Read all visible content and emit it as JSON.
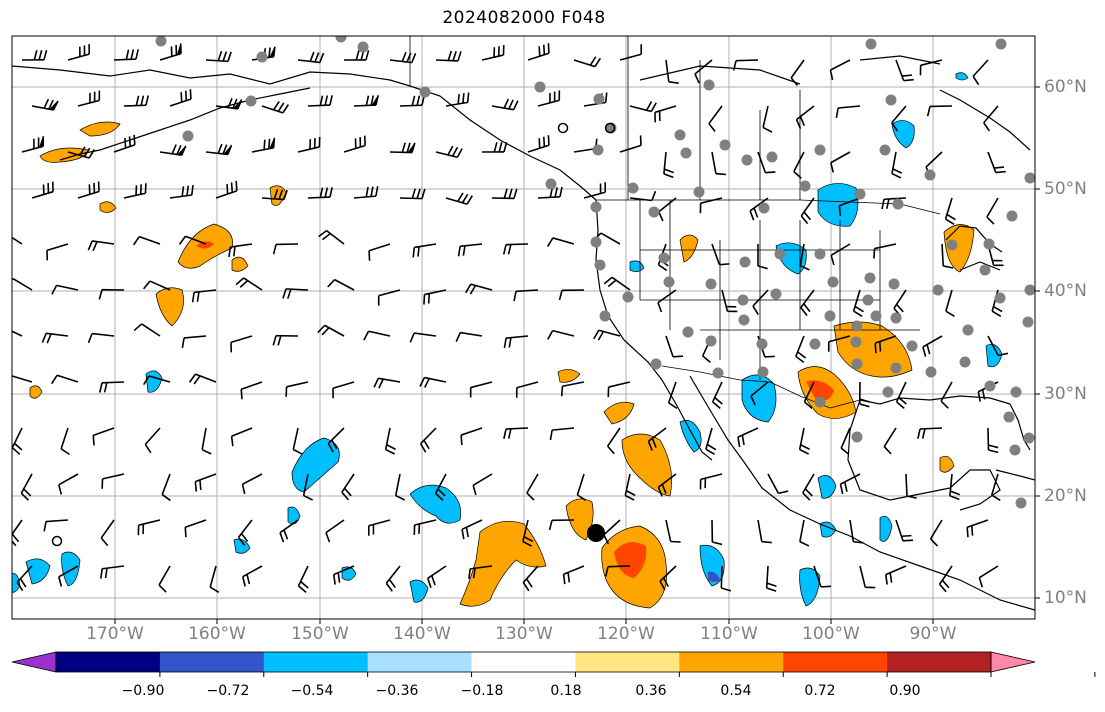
{
  "title": "2024082000 F048",
  "longitude_labels": [
    "170°W",
    "160°W",
    "150°W",
    "140°W",
    "130°W",
    "120°W",
    "110°W",
    "100°W",
    "90°W"
  ],
  "latitude_labels": [
    "60°N",
    "50°N",
    "40°N",
    "30°N",
    "20°N",
    "10°N"
  ],
  "colorbar": {
    "tick_labels": [
      "−0.90",
      "−0.72",
      "−0.54",
      "−0.36",
      "−0.18",
      "0.18",
      "0.36",
      "0.54",
      "0.72",
      "0.90"
    ],
    "colors": [
      "#9933cc",
      "#000080",
      "#3355cc",
      "#00bfff",
      "#aae0ff",
      "#ffffff",
      "#ffe680",
      "#ffa500",
      "#ff4500",
      "#b22222",
      "#ff88aa"
    ]
  },
  "colors": {
    "land_outline": "#000000",
    "gridline": "#b0b0b0",
    "station_marker": "#808080",
    "positive_shading": "#ffa500",
    "negative_shading": "#00bfff"
  },
  "map_features": {
    "wind_barbs": true,
    "station_dots": true,
    "storm_center_marker": "filled-black-circle"
  }
}
